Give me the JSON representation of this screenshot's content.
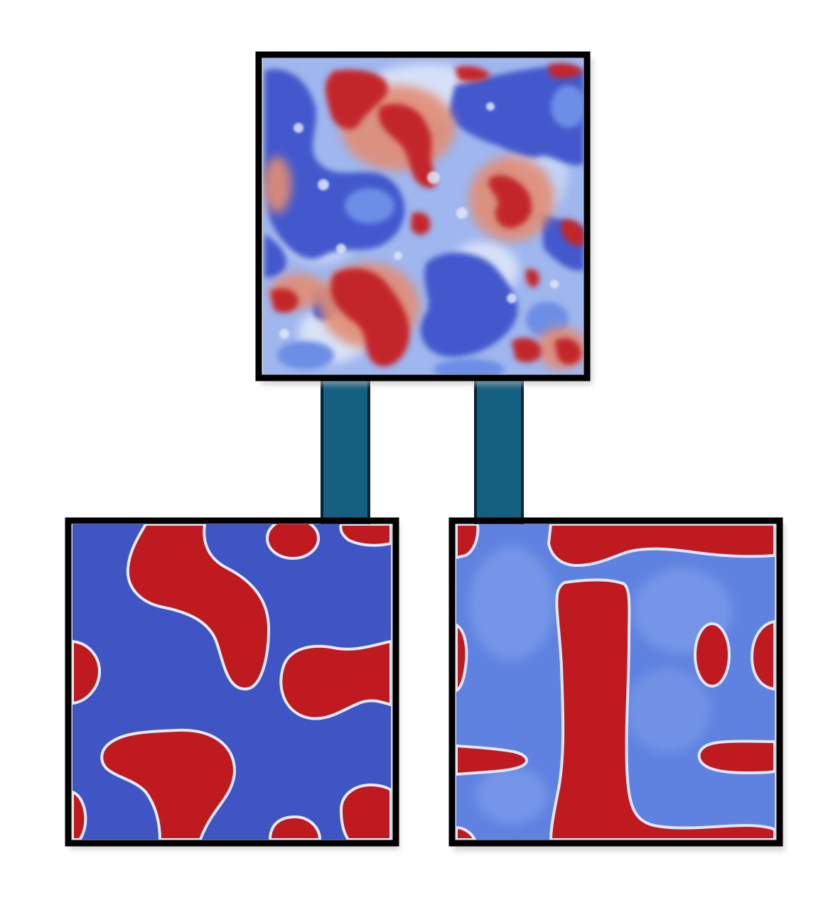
{
  "diagram": {
    "title": "",
    "colors": {
      "background": "#ffffff",
      "frame": "#000000",
      "connector_fill": "#146080",
      "connector_stroke": "#062235",
      "field_blue": "#4055c4",
      "field_light_blue": "#6a8de6",
      "field_pale": "#c9d8f7",
      "field_red": "#bf1a1f",
      "field_orange": "#e26d55"
    },
    "panels": [
      {
        "name": "initial-random-field-panel",
        "texture": "noisy-mixed-field"
      },
      {
        "name": "left-coarsened-field-panel",
        "texture": "smooth-red-domains-on-blue"
      },
      {
        "name": "right-coarsened-field-panel",
        "texture": "stripes-and-dots-on-light-blue"
      }
    ],
    "connectors": [
      {
        "name": "connector-bar-left",
        "from": "initial-random-field-panel",
        "to": "left-coarsened-field-panel"
      },
      {
        "name": "connector-bar-right",
        "from": "initial-random-field-panel",
        "to": "right-coarsened-field-panel"
      }
    ]
  }
}
